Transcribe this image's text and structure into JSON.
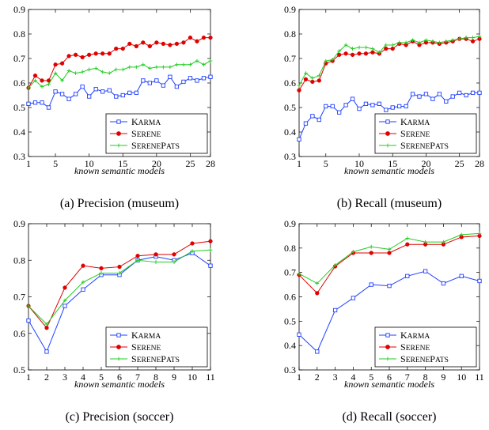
{
  "colors": {
    "karma": "#1f3fff",
    "serene": "#e00000",
    "serenepats": "#22cc22"
  },
  "chart_data": [
    {
      "type": "line",
      "caption": "(a) Precision (museum)",
      "xlabel": "known semantic models",
      "ylabel": "",
      "xlim": [
        1,
        28
      ],
      "ylim": [
        0.3,
        0.9
      ],
      "xticks": [
        1,
        5,
        10,
        15,
        20,
        25,
        28
      ],
      "yticks": [
        0.3,
        0.4,
        0.5,
        0.6,
        0.7,
        0.8,
        0.9
      ],
      "legend_position": "bottom-right",
      "x": [
        1,
        2,
        3,
        4,
        5,
        6,
        7,
        8,
        9,
        10,
        11,
        12,
        13,
        14,
        15,
        16,
        17,
        18,
        19,
        20,
        21,
        22,
        23,
        24,
        25,
        26,
        27,
        28
      ],
      "series": [
        {
          "name": "Karma",
          "name_display": [
            "K",
            "ARMA"
          ],
          "color_key": "karma",
          "marker": "square",
          "values": [
            0.515,
            0.52,
            0.52,
            0.5,
            0.565,
            0.555,
            0.535,
            0.555,
            0.585,
            0.545,
            0.575,
            0.565,
            0.57,
            0.545,
            0.55,
            0.56,
            0.56,
            0.61,
            0.6,
            0.61,
            0.59,
            0.625,
            0.585,
            0.605,
            0.62,
            0.61,
            0.62,
            0.625
          ]
        },
        {
          "name": "Serene",
          "name_display": [
            "S",
            "ERENE"
          ],
          "color_key": "serene",
          "marker": "circle",
          "values": [
            0.58,
            0.63,
            0.61,
            0.61,
            0.675,
            0.68,
            0.71,
            0.715,
            0.705,
            0.715,
            0.72,
            0.72,
            0.72,
            0.74,
            0.74,
            0.76,
            0.75,
            0.765,
            0.75,
            0.765,
            0.76,
            0.755,
            0.76,
            0.765,
            0.785,
            0.77,
            0.785,
            0.785
          ]
        },
        {
          "name": "SerenePats",
          "name_display": [
            "S",
            "ERENE",
            "P",
            "ATS"
          ],
          "color_key": "serenepats",
          "marker": "plus",
          "values": [
            0.58,
            0.61,
            0.585,
            0.595,
            0.64,
            0.61,
            0.65,
            0.64,
            0.645,
            0.655,
            0.66,
            0.645,
            0.64,
            0.655,
            0.655,
            0.665,
            0.665,
            0.675,
            0.66,
            0.665,
            0.665,
            0.665,
            0.675,
            0.675,
            0.675,
            0.69,
            0.675,
            0.69
          ]
        }
      ]
    },
    {
      "type": "line",
      "caption": "(b) Recall (museum)",
      "xlabel": "known semantic models",
      "ylabel": "",
      "xlim": [
        1,
        28
      ],
      "ylim": [
        0.3,
        0.9
      ],
      "xticks": [
        1,
        5,
        10,
        15,
        20,
        25,
        28
      ],
      "yticks": [
        0.3,
        0.4,
        0.5,
        0.6,
        0.7,
        0.8,
        0.9
      ],
      "legend_position": "bottom-right",
      "x": [
        1,
        2,
        3,
        4,
        5,
        6,
        7,
        8,
        9,
        10,
        11,
        12,
        13,
        14,
        15,
        16,
        17,
        18,
        19,
        20,
        21,
        22,
        23,
        24,
        25,
        26,
        27,
        28
      ],
      "series": [
        {
          "name": "Karma",
          "name_display": [
            "K",
            "ARMA"
          ],
          "color_key": "karma",
          "marker": "square",
          "values": [
            0.37,
            0.435,
            0.465,
            0.45,
            0.505,
            0.505,
            0.48,
            0.51,
            0.535,
            0.495,
            0.515,
            0.51,
            0.515,
            0.49,
            0.5,
            0.505,
            0.505,
            0.555,
            0.545,
            0.555,
            0.535,
            0.555,
            0.525,
            0.545,
            0.56,
            0.55,
            0.56,
            0.56
          ]
        },
        {
          "name": "Serene",
          "name_display": [
            "S",
            "ERENE"
          ],
          "color_key": "serene",
          "marker": "circle",
          "values": [
            0.57,
            0.615,
            0.605,
            0.61,
            0.68,
            0.69,
            0.715,
            0.72,
            0.715,
            0.72,
            0.72,
            0.725,
            0.72,
            0.74,
            0.74,
            0.76,
            0.755,
            0.77,
            0.755,
            0.765,
            0.765,
            0.76,
            0.765,
            0.77,
            0.78,
            0.78,
            0.77,
            0.78
          ]
        },
        {
          "name": "SerenePats",
          "name_display": [
            "S",
            "ERENE",
            "P",
            "ATS"
          ],
          "color_key": "serenepats",
          "marker": "plus",
          "values": [
            0.59,
            0.64,
            0.62,
            0.63,
            0.69,
            0.695,
            0.73,
            0.755,
            0.74,
            0.745,
            0.745,
            0.74,
            0.725,
            0.755,
            0.755,
            0.765,
            0.765,
            0.775,
            0.765,
            0.775,
            0.77,
            0.765,
            0.77,
            0.775,
            0.78,
            0.785,
            0.785,
            0.79
          ]
        }
      ]
    },
    {
      "type": "line",
      "caption": "(c) Precision (soccer)",
      "xlabel": "known semantic models",
      "ylabel": "",
      "xlim": [
        1,
        11
      ],
      "ylim": [
        0.5,
        0.9
      ],
      "xticks": [
        1,
        2,
        3,
        4,
        5,
        6,
        7,
        8,
        9,
        10,
        11
      ],
      "yticks": [
        0.5,
        0.6,
        0.7,
        0.8,
        0.9
      ],
      "legend_position": "bottom-right",
      "x": [
        1,
        2,
        3,
        4,
        5,
        6,
        7,
        8,
        9,
        10,
        11
      ],
      "series": [
        {
          "name": "Karma",
          "name_display": [
            "K",
            "ARMA"
          ],
          "color_key": "karma",
          "marker": "square",
          "values": [
            0.635,
            0.55,
            0.675,
            0.72,
            0.76,
            0.76,
            0.8,
            0.81,
            0.8,
            0.82,
            0.785
          ]
        },
        {
          "name": "Serene",
          "name_display": [
            "S",
            "ERENE"
          ],
          "color_key": "serene",
          "marker": "circle",
          "values": [
            0.675,
            0.615,
            0.725,
            0.785,
            0.778,
            0.782,
            0.812,
            0.816,
            0.816,
            0.846,
            0.852
          ]
        },
        {
          "name": "SerenePats",
          "name_display": [
            "S",
            "ERENE",
            "P",
            "ATS"
          ],
          "color_key": "serenepats",
          "marker": "plus",
          "values": [
            0.675,
            0.625,
            0.69,
            0.74,
            0.765,
            0.765,
            0.8,
            0.795,
            0.795,
            0.825,
            0.828
          ]
        }
      ]
    },
    {
      "type": "line",
      "caption": "(d) Recall (soccer)",
      "xlabel": "known semantic models",
      "ylabel": "",
      "xlim": [
        1,
        11
      ],
      "ylim": [
        0.3,
        0.9
      ],
      "xticks": [
        1,
        2,
        3,
        4,
        5,
        6,
        7,
        8,
        9,
        10,
        11
      ],
      "yticks": [
        0.3,
        0.4,
        0.5,
        0.6,
        0.7,
        0.8,
        0.9
      ],
      "legend_position": "bottom-right",
      "x": [
        1,
        2,
        3,
        4,
        5,
        6,
        7,
        8,
        9,
        10,
        11
      ],
      "series": [
        {
          "name": "Karma",
          "name_display": [
            "K",
            "ARMA"
          ],
          "color_key": "karma",
          "marker": "square",
          "values": [
            0.445,
            0.375,
            0.545,
            0.595,
            0.65,
            0.645,
            0.685,
            0.705,
            0.655,
            0.685,
            0.665
          ]
        },
        {
          "name": "Serene",
          "name_display": [
            "S",
            "ERENE"
          ],
          "color_key": "serene",
          "marker": "circle",
          "values": [
            0.69,
            0.615,
            0.725,
            0.78,
            0.78,
            0.78,
            0.815,
            0.815,
            0.815,
            0.845,
            0.85
          ]
        },
        {
          "name": "SerenePats",
          "name_display": [
            "S",
            "ERENE",
            "P",
            "ATS"
          ],
          "color_key": "serenepats",
          "marker": "plus",
          "values": [
            0.695,
            0.655,
            0.73,
            0.785,
            0.805,
            0.795,
            0.84,
            0.825,
            0.825,
            0.855,
            0.86
          ]
        }
      ]
    }
  ]
}
